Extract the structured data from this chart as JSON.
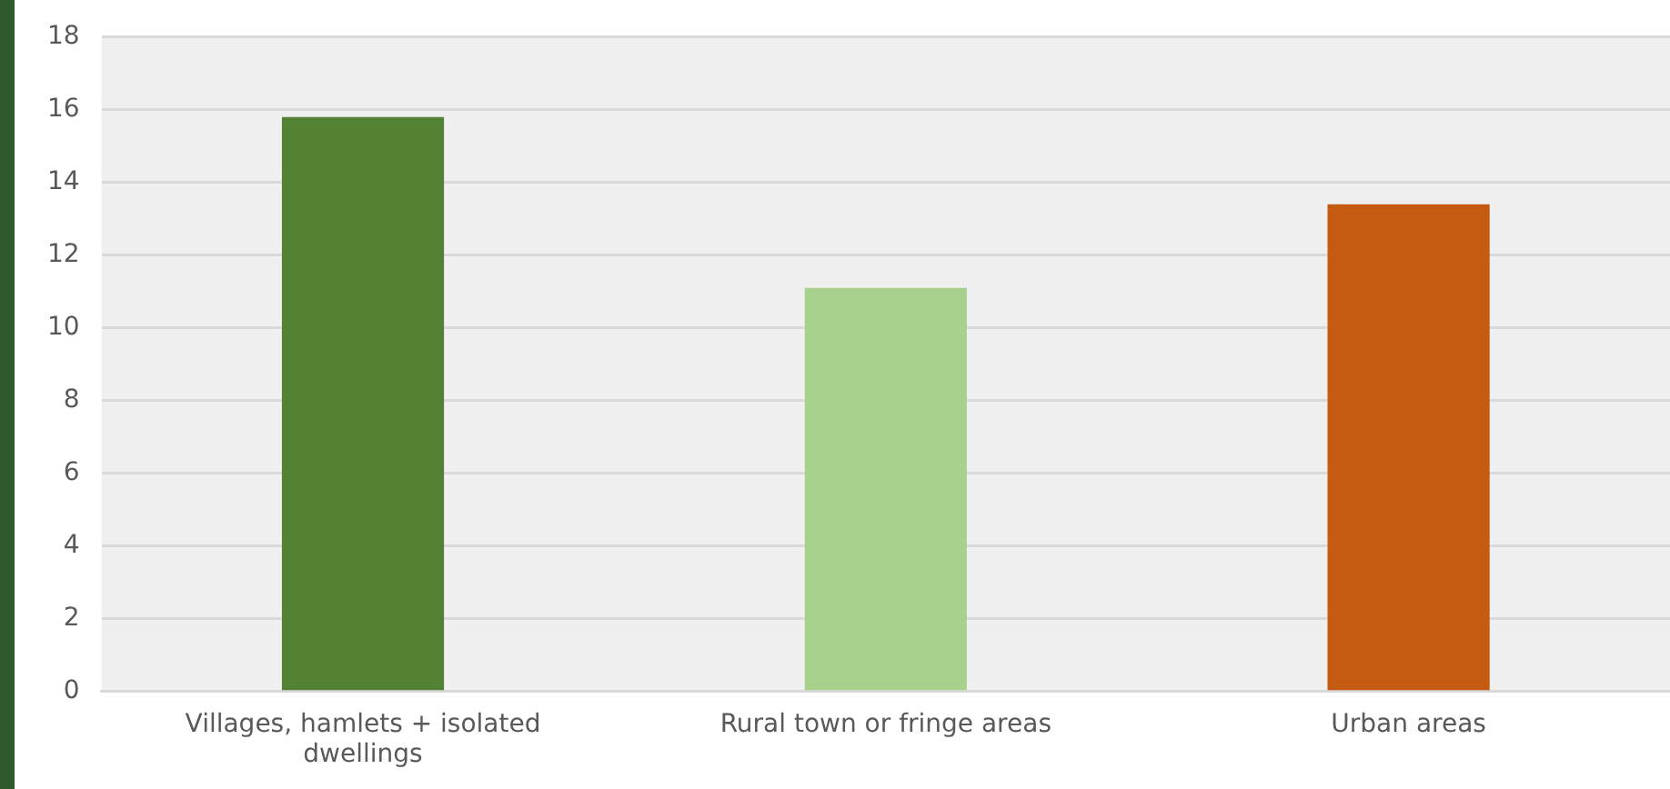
{
  "chart_data": {
    "type": "bar",
    "categories": [
      "Villages, hamlets + isolated dwellings",
      "Rural town or fringe areas",
      "Urban areas"
    ],
    "values": [
      15.8,
      11.1,
      13.4
    ],
    "colors": [
      "#548235",
      "#a9d18e",
      "#c55a11"
    ],
    "ylim": [
      0,
      18
    ],
    "yticks": [
      0,
      2,
      4,
      6,
      8,
      10,
      12,
      14,
      16,
      18
    ],
    "grid": "y",
    "legend": false
  }
}
